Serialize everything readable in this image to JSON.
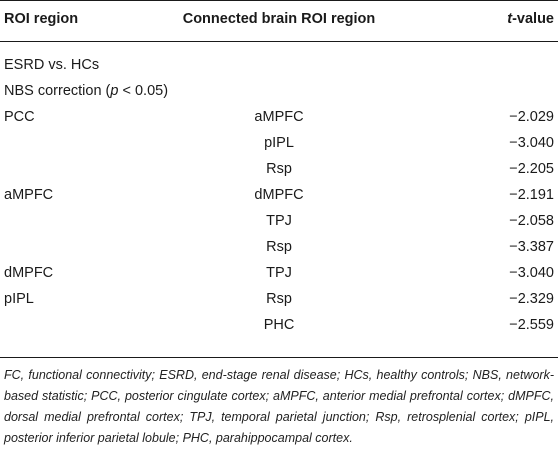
{
  "table": {
    "headers": {
      "roi": "ROI region",
      "connected": "Connected brain ROI region",
      "t_prefix": "t",
      "t_suffix": "-value"
    },
    "group_label": "ESRD vs. HCs",
    "correction_prefix": "NBS correction (",
    "correction_p": "p",
    "correction_suffix": " < 0.05)",
    "rows": [
      {
        "roi": "PCC",
        "connected": "aMPFC",
        "t": "−2.029"
      },
      {
        "roi": "",
        "connected": "pIPL",
        "t": "−3.040"
      },
      {
        "roi": "",
        "connected": "Rsp",
        "t": "−2.205"
      },
      {
        "roi": "aMPFC",
        "connected": "dMPFC",
        "t": "−2.191"
      },
      {
        "roi": "",
        "connected": "TPJ",
        "t": "−2.058"
      },
      {
        "roi": "",
        "connected": "Rsp",
        "t": "−3.387"
      },
      {
        "roi": "dMPFC",
        "connected": "TPJ",
        "t": "−3.040"
      },
      {
        "roi": "pIPL",
        "connected": "Rsp",
        "t": "−2.329"
      },
      {
        "roi": "",
        "connected": "PHC",
        "t": "−2.559"
      }
    ]
  },
  "footnote": "FC, functional connectivity; ESRD, end-stage renal disease; HCs, healthy controls; NBS, network-based statistic; PCC, posterior cingulate cortex; aMPFC, anterior medial prefrontal cortex; dMPFC, dorsal medial prefrontal cortex; TPJ, temporal parietal junction; Rsp, retrosplenial cortex; pIPL, posterior inferior parietal lobule; PHC, parahippocampal cortex."
}
